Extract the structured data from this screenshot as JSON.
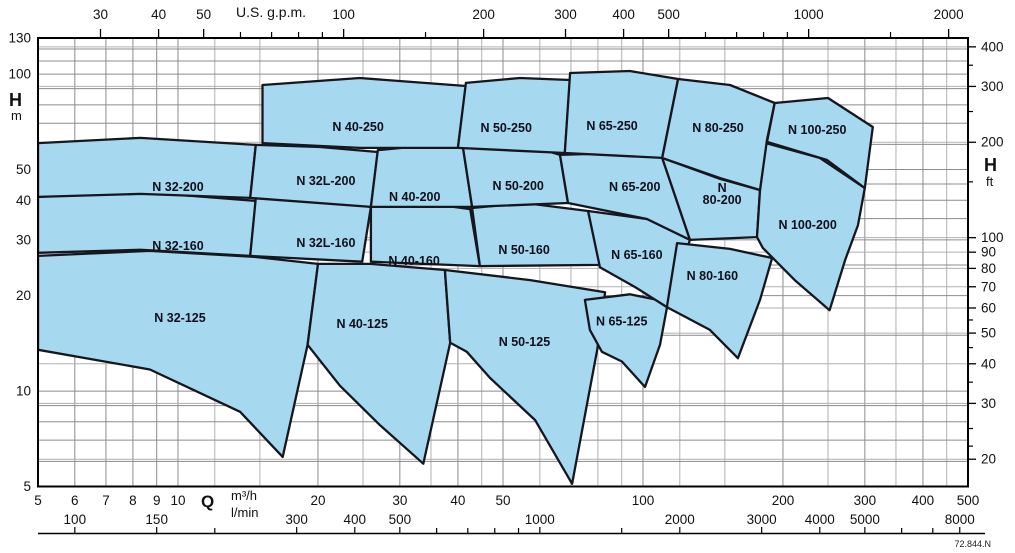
{
  "page": {
    "background": "#ffffff"
  },
  "chart_data": {
    "type": "area",
    "description": "Pump selection chart - N series performance ranges, Q vs H, log-log grid",
    "footnote": "72.844.N",
    "colors": {
      "region_fill": "#a6d8ef",
      "region_stroke": "#16161f",
      "grid_major": "#8c8c8c",
      "grid_minor": "#b0b0b0",
      "frame": "#000000",
      "text": "#111111"
    },
    "axes": {
      "x_top_gpm": {
        "label": "U.S. g.p.m.",
        "labeled_ticks": [
          30,
          40,
          50,
          100,
          200,
          300,
          400,
          500,
          1000,
          2000
        ],
        "minor_ticks": [
          60,
          70,
          80,
          90,
          150,
          600,
          700,
          800,
          900,
          1500
        ]
      },
      "x_bottom_m3h": {
        "label": "Q",
        "unit": "m³/h",
        "range": [
          5,
          500
        ],
        "labeled_ticks": [
          5,
          6,
          7,
          8,
          9,
          10,
          20,
          30,
          40,
          50,
          100,
          200,
          300,
          400,
          500
        ],
        "gridlines": [
          5,
          6,
          7,
          8,
          9,
          10,
          12,
          15,
          20,
          25,
          30,
          35,
          40,
          45,
          50,
          60,
          70,
          80,
          90,
          100,
          120,
          150,
          200,
          250,
          300,
          350,
          400,
          450,
          500
        ]
      },
      "x_bottom_lmin": {
        "unit": "l/min",
        "labeled_ticks": [
          100,
          150,
          300,
          400,
          500,
          1000,
          2000,
          3000,
          4000,
          5000,
          8000
        ],
        "minor_ticks": [
          200,
          600,
          700,
          800,
          900,
          1500,
          6000,
          7000
        ]
      },
      "y_left_m": {
        "label": "H",
        "unit": "m",
        "range": [
          5,
          130
        ],
        "labeled_ticks": [
          130,
          100,
          50,
          40,
          30,
          20,
          10,
          5
        ],
        "gridlines": [
          120,
          110,
          100,
          90,
          80,
          70,
          60,
          50,
          45,
          40,
          35,
          30,
          25,
          20,
          15,
          10,
          9,
          8,
          7,
          6
        ]
      },
      "y_right_ft": {
        "label": "H",
        "unit": "ft",
        "labeled_ticks": [
          400,
          300,
          200,
          100,
          90,
          80,
          70,
          60,
          50,
          40,
          30,
          20
        ],
        "minor_ticks": [
          350,
          250,
          150,
          55,
          45,
          35,
          25,
          22
        ]
      }
    },
    "regions": [
      {
        "name": "N 32-125",
        "label": [
          10.1,
          17
        ],
        "polygon": [
          [
            5,
            26.7
          ],
          [
            8.7,
            27.7
          ],
          [
            14.6,
            26.5
          ],
          [
            20,
            25.2
          ],
          [
            19,
            14
          ],
          [
            16.8,
            6.2
          ],
          [
            13.6,
            8.6
          ],
          [
            8.7,
            11.7
          ],
          [
            5,
            13.5
          ]
        ]
      },
      {
        "name": "N 40-125",
        "label": [
          24.9,
          16.3
        ],
        "polygon": [
          [
            20,
            25.2
          ],
          [
            26,
            25.2
          ],
          [
            37.5,
            24.1
          ],
          [
            38.5,
            14.2
          ],
          [
            33.7,
            5.9
          ],
          [
            27.2,
            7.8
          ],
          [
            22.3,
            10.4
          ],
          [
            19,
            14
          ]
        ]
      },
      {
        "name": "N 50-125",
        "label": [
          55.6,
          14.3
        ],
        "polygon": [
          [
            37.5,
            24.1
          ],
          [
            57.2,
            22.4
          ],
          [
            82.9,
            20.5
          ],
          [
            79.7,
            13.5
          ],
          [
            70.4,
            5.1
          ],
          [
            58.6,
            8.1
          ],
          [
            46.9,
            11
          ],
          [
            41.8,
            13.3
          ],
          [
            38.5,
            14.2
          ]
        ]
      },
      {
        "name": "N 65-125",
        "label": [
          90,
          16.6
        ],
        "polygon": [
          [
            75,
            19.4
          ],
          [
            93.7,
            20.2
          ],
          [
            113.2,
            19.1
          ],
          [
            108.8,
            14
          ],
          [
            101,
            10.3
          ],
          [
            90.1,
            12.4
          ],
          [
            81.6,
            13.3
          ],
          [
            76.9,
            15.6
          ]
        ]
      },
      {
        "name": "N 32-160",
        "label": [
          10,
          28.7
        ],
        "polygon": [
          [
            5,
            41
          ],
          [
            8.3,
            42.5
          ],
          [
            14.7,
            39.8
          ],
          [
            14.3,
            26.7
          ],
          [
            8.3,
            27.9
          ],
          [
            5,
            27.3
          ]
        ]
      },
      {
        "name": "N 32L-160",
        "label": [
          20.8,
          29.3
        ],
        "polygon": [
          [
            14.7,
            40.7
          ],
          [
            20.2,
            40.1
          ],
          [
            26,
            38.1
          ],
          [
            24.9,
            25.6
          ],
          [
            14.3,
            26.7
          ]
        ]
      },
      {
        "name": "N 40-160",
        "label": [
          32.2,
          25.7
        ],
        "polygon": [
          [
            26,
            38.1
          ],
          [
            34,
            39.2
          ],
          [
            42.5,
            37.5
          ],
          [
            44.6,
            24.8
          ],
          [
            26,
            25.6
          ]
        ]
      },
      {
        "name": "N 50-160",
        "label": [
          55.5,
          27.9
        ],
        "polygon": [
          [
            42.9,
            37.8
          ],
          [
            55.7,
            39.2
          ],
          [
            76.2,
            37
          ],
          [
            80.8,
            25
          ],
          [
            44.6,
            24.8
          ]
        ]
      },
      {
        "name": "N 65-160",
        "label": [
          97,
          26.9
        ],
        "polygon": [
          [
            76.2,
            37
          ],
          [
            102,
            34.9
          ],
          [
            126.2,
            30
          ],
          [
            112.6,
            18.4
          ],
          [
            96.1,
            21.3
          ],
          [
            80.8,
            24.6
          ]
        ]
      },
      {
        "name": "N 80-160",
        "label": [
          141,
          23.1
        ],
        "polygon": [
          [
            118.4,
            29.3
          ],
          [
            153.9,
            28.1
          ],
          [
            189.5,
            26.3
          ],
          [
            178.5,
            19.4
          ],
          [
            160,
            12.7
          ],
          [
            139.3,
            15.6
          ],
          [
            112.6,
            18.4
          ]
        ]
      },
      {
        "name": "N 32-200",
        "label": [
          10,
          44
        ],
        "polygon": [
          [
            5,
            60.6
          ],
          [
            8.3,
            62.9
          ],
          [
            14.7,
            59.8
          ],
          [
            14.3,
            40.7
          ],
          [
            8.3,
            41.9
          ],
          [
            5,
            41
          ]
        ]
      },
      {
        "name": "N 32L-200",
        "label": [
          20.8,
          46
        ],
        "polygon": [
          [
            14.7,
            59.8
          ],
          [
            20.2,
            58.9
          ],
          [
            26.9,
            56.8
          ],
          [
            26,
            38.1
          ],
          [
            14.3,
            40.7
          ]
        ]
      },
      {
        "name": "N 40-200",
        "label": [
          32.3,
          41
        ],
        "polygon": [
          [
            26.9,
            57.6
          ],
          [
            33.2,
            59.3
          ],
          [
            41,
            58.9
          ],
          [
            42.9,
            38.1
          ],
          [
            26,
            38.1
          ]
        ]
      },
      {
        "name": "N 50-200",
        "label": [
          53.9,
          44.4
        ],
        "polygon": [
          [
            41,
            58.9
          ],
          [
            55.7,
            60.2
          ],
          [
            66.3,
            55.6
          ],
          [
            69,
            39.2
          ],
          [
            42.9,
            38.1
          ]
        ]
      },
      {
        "name": "N 65-200",
        "label": [
          96,
          44
        ],
        "polygon": [
          [
            66.3,
            55.6
          ],
          [
            89.2,
            56.4
          ],
          [
            110,
            54.4
          ],
          [
            126.2,
            30
          ],
          [
            102,
            34.9
          ],
          [
            69,
            39.2
          ]
        ]
      },
      {
        "name": "N 80-200",
        "label": [
          148,
          41.6
        ],
        "label_lines": [
          "N",
          "80-200"
        ],
        "polygon": [
          [
            110,
            54.4
          ],
          [
            146.5,
            46.7
          ],
          [
            178.5,
            43.1
          ],
          [
            175.9,
            30.6
          ],
          [
            126.2,
            30
          ]
        ]
      },
      {
        "name": "N 100-200",
        "label": [
          226,
          33.4
        ],
        "polygon": [
          [
            183.9,
            60.6
          ],
          [
            240,
            54.4
          ],
          [
            300,
            43.7
          ],
          [
            290,
            33.4
          ],
          [
            272,
            25.9
          ],
          [
            252,
            18
          ],
          [
            212,
            22.4
          ],
          [
            181,
            28.3
          ],
          [
            175.9,
            30.6
          ],
          [
            178.5,
            43.1
          ]
        ]
      },
      {
        "name": "N 40-250",
        "label": [
          24.4,
          68.1
        ],
        "polygon": [
          [
            15.2,
            92.4
          ],
          [
            24.6,
            97.2
          ],
          [
            41.6,
            91.7
          ],
          [
            40,
            58.5
          ],
          [
            24.6,
            58.5
          ],
          [
            15.2,
            60.6
          ]
        ]
      },
      {
        "name": "N 50-250",
        "label": [
          50.8,
          67.6
        ],
        "polygon": [
          [
            41.6,
            93.8
          ],
          [
            54.4,
            97.2
          ],
          [
            69.7,
            95.8
          ],
          [
            67.9,
            56.4
          ],
          [
            40,
            58.5
          ]
        ]
      },
      {
        "name": "N 65-250",
        "label": [
          85.8,
          68.6
        ],
        "polygon": [
          [
            69.7,
            100.8
          ],
          [
            93.7,
            102.3
          ],
          [
            119,
            96.5
          ],
          [
            110,
            54.4
          ],
          [
            67.9,
            56.4
          ]
        ]
      },
      {
        "name": "N 80-250",
        "label": [
          145,
          67.6
        ],
        "polygon": [
          [
            119,
            96.5
          ],
          [
            153.9,
            92.4
          ],
          [
            192,
            81.1
          ],
          [
            184.8,
            62
          ],
          [
            178.5,
            43.1
          ],
          [
            146.5,
            47
          ],
          [
            110,
            54.4
          ]
        ]
      },
      {
        "name": "N 100-250",
        "label": [
          237,
          66.6
        ],
        "polygon": [
          [
            192,
            81.1
          ],
          [
            250,
            84.1
          ],
          [
            312,
            68.1
          ],
          [
            300,
            43.7
          ],
          [
            248.8,
            53.6
          ],
          [
            184.8,
            61.1
          ]
        ]
      }
    ]
  }
}
